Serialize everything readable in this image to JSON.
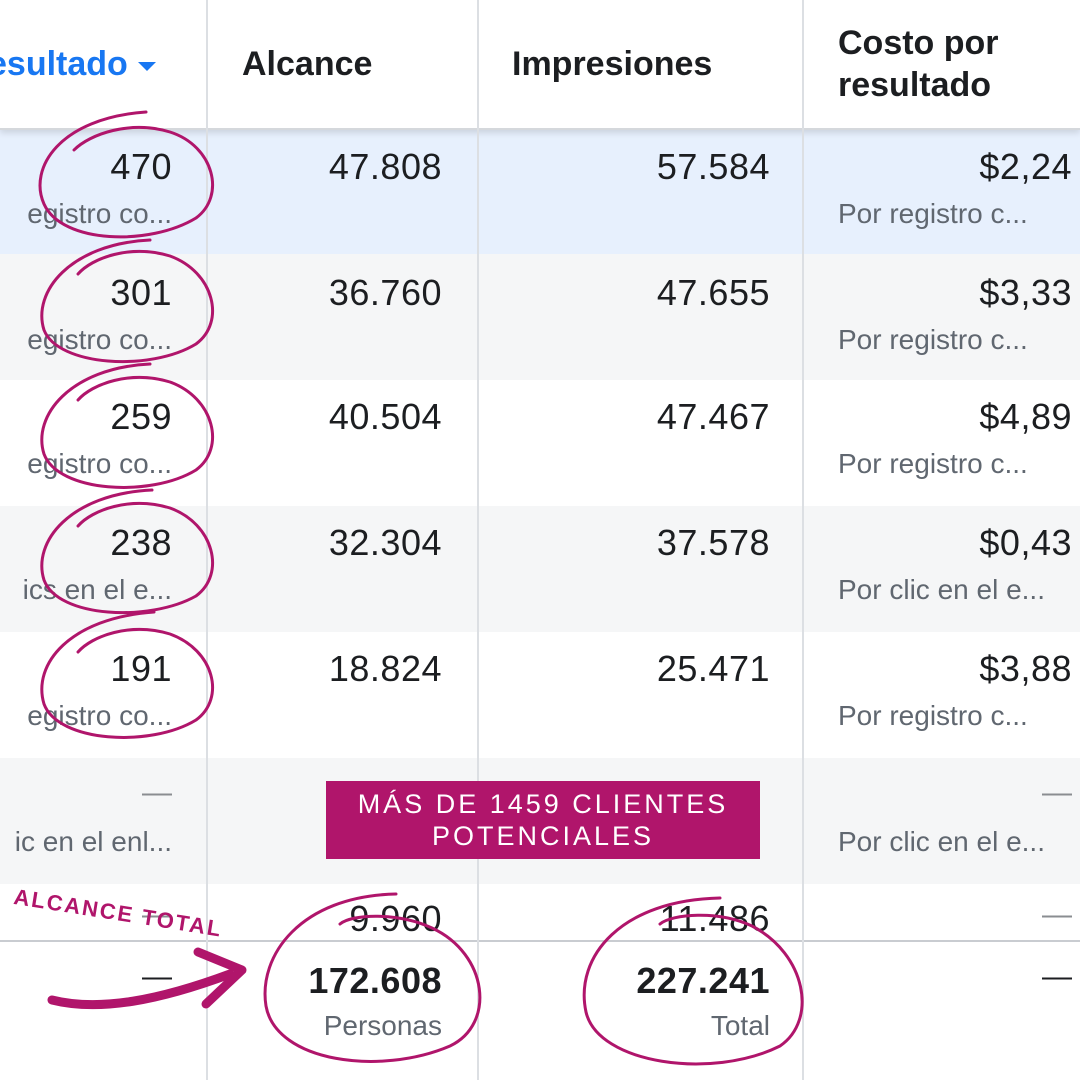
{
  "header": {
    "resultado": "esultado",
    "alcance": "Alcance",
    "impresiones": "Impresiones",
    "costo": "Costo por\nresultado"
  },
  "rows": [
    {
      "resultado": "470",
      "resultado_sub": "egistro co...",
      "alcance": "47.808",
      "impresiones": "57.584",
      "costo": "$2,24",
      "costo_sub": "Por registro c..."
    },
    {
      "resultado": "301",
      "resultado_sub": "egistro co...",
      "alcance": "36.760",
      "impresiones": "47.655",
      "costo": "$3,33",
      "costo_sub": "Por registro c..."
    },
    {
      "resultado": "259",
      "resultado_sub": "egistro co...",
      "alcance": "40.504",
      "impresiones": "47.467",
      "costo": "$4,89",
      "costo_sub": "Por registro c..."
    },
    {
      "resultado": "238",
      "resultado_sub": "ics en el e...",
      "alcance": "32.304",
      "impresiones": "37.578",
      "costo": "$0,43",
      "costo_sub": "Por clic en el e..."
    },
    {
      "resultado": "191",
      "resultado_sub": "egistro co...",
      "alcance": "18.824",
      "impresiones": "25.471",
      "costo": "$3,88",
      "costo_sub": "Por registro c..."
    },
    {
      "resultado": "—",
      "resultado_sub": "ic en el enl...",
      "costo": "—",
      "costo_sub": "Por clic en el e..."
    },
    {
      "resultado": "—",
      "alcance": "9.960",
      "impresiones": "11.486",
      "costo": "—"
    }
  ],
  "totals": {
    "resultado": "—",
    "alcance": "172.608",
    "alcance_sub": "Personas",
    "impresiones": "227.241",
    "impresiones_sub": "Total",
    "costo": "—"
  },
  "banner": {
    "line1": "MÁS DE 1459 CLIENTES",
    "line2": "POTENCIALES"
  },
  "annotation": "ALCANCE TOTAL",
  "colors": {
    "accent_magenta": "#b0156b",
    "link_blue": "#1877f2",
    "selected_row": "#e7f0fd",
    "alt_row": "#f5f6f7"
  }
}
